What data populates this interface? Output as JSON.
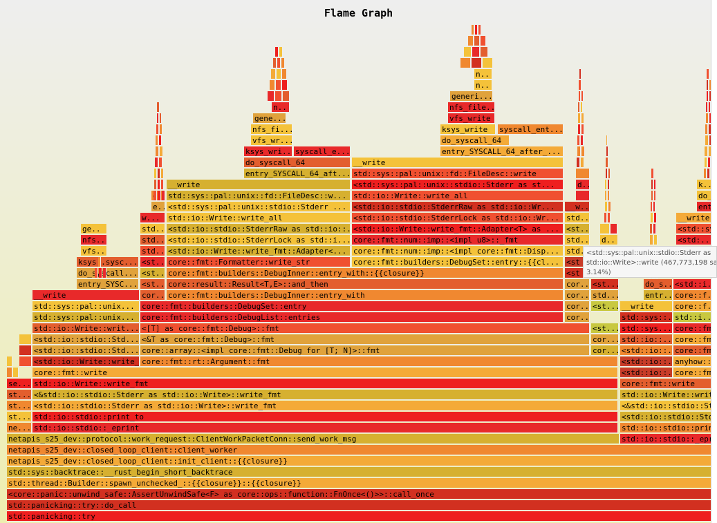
{
  "title": "Flame Graph",
  "tooltip": {
    "line1": "<std::sys::pal::unix::stdio::Stderr as",
    "line2": "std::io::Write>::write (467,773,198 sa",
    "line3": "3.14%)"
  },
  "colors": {
    "r": "#e8292a",
    "o": "#f08830",
    "y": "#f4c23a",
    "d": "#c83c28",
    "l": "#e0a23c",
    "k": "#d6b030",
    "g": "#c8c840",
    "p": "#f05030",
    "m": "#e35e2e",
    "c": "#d23020",
    "s": "#ee1f1f",
    "e": "#f4aa38"
  },
  "chart_data": {
    "type": "flame",
    "title": "Flame Graph",
    "tooltip_text": "<std::sys::pal::unix::stdio::Stderr as std::io::Write>::write (467,773,198 sa 3.14%)",
    "frames": [
      {
        "r": 0,
        "x": 10,
        "w": 1020,
        "c": "s",
        "t": "std::panicking::try"
      },
      {
        "r": 1,
        "x": 10,
        "w": 1020,
        "c": "c",
        "t": "std::panicking::try::do_call"
      },
      {
        "r": 2,
        "x": 10,
        "w": 1020,
        "c": "c",
        "t": "<core::panic::unwind_safe::AssertUnwindSafe<F> as core::ops::function::FnOnce<()>>::call_once"
      },
      {
        "r": 3,
        "x": 10,
        "w": 1020,
        "c": "e",
        "t": "std::thread::Builder::spawn_unchecked_::{{closure}}::{{closure}}"
      },
      {
        "r": 4,
        "x": 10,
        "w": 1020,
        "c": "k",
        "t": "std::sys::backtrace::__rust_begin_short_backtrace"
      },
      {
        "r": 5,
        "x": 10,
        "w": 1020,
        "c": "e",
        "t": "netapis_s25_dev::closed_loop_client::init_client::{{closure}}"
      },
      {
        "r": 6,
        "x": 10,
        "w": 1020,
        "c": "o",
        "t": "netapis_s25_dev::closed_loop_client::client_worker"
      },
      {
        "r": 7,
        "x": 10,
        "w": 886,
        "c": "k",
        "t": "netapis_s25_dev::protocol::work_request::ClientWorkPacketConn::send_work_msg"
      },
      {
        "r": 7,
        "x": 897,
        "w": 133,
        "c": "r",
        "t": "std::io::stdio::_eprint"
      },
      {
        "r": 8,
        "x": 10,
        "w": 36,
        "c": "o",
        "t": "ne..."
      },
      {
        "r": 8,
        "x": 47,
        "w": 847,
        "c": "r",
        "t": "std::io::stdio::_eprint"
      },
      {
        "r": 8,
        "x": 897,
        "w": 133,
        "c": "o",
        "t": "std::io::stdio::print_to"
      },
      {
        "r": 9,
        "x": 10,
        "w": 36,
        "c": "y",
        "t": "st..."
      },
      {
        "r": 9,
        "x": 47,
        "w": 847,
        "c": "s",
        "t": "std::io::stdio::print_to"
      },
      {
        "r": 9,
        "x": 897,
        "w": 133,
        "c": "k",
        "t": "<std::io::stdio::Stderr as std::io::Write>::write_fmt"
      },
      {
        "r": 10,
        "x": 10,
        "w": 36,
        "c": "o",
        "t": "st..."
      },
      {
        "r": 10,
        "x": 47,
        "w": 847,
        "c": "e",
        "t": "<std::io::stdio::Stderr as std::io::Write>::write_fmt"
      },
      {
        "r": 10,
        "x": 897,
        "w": 133,
        "c": "y",
        "t": "<&std::io::stdio::Stderr as std::io::Write>::write_fmt"
      },
      {
        "r": 11,
        "x": 10,
        "w": 36,
        "c": "m",
        "t": "st..."
      },
      {
        "r": 11,
        "x": 47,
        "w": 847,
        "c": "k",
        "t": "<&std::io::stdio::Stderr as std::io::Write>::write_fmt"
      },
      {
        "r": 11,
        "x": 897,
        "w": 133,
        "c": "k",
        "t": "std::io::Write::write_fmt"
      },
      {
        "r": 12,
        "x": 10,
        "w": 36,
        "c": "s",
        "t": "se..."
      },
      {
        "r": 12,
        "x": 47,
        "w": 847,
        "c": "s",
        "t": "std::io::Write::write_fmt"
      },
      {
        "r": 12,
        "x": 897,
        "w": 133,
        "c": "m",
        "t": "core::fmt::write"
      },
      {
        "r": 13,
        "x": 10,
        "w": 8,
        "c": "o",
        "t": ""
      },
      {
        "r": 13,
        "x": 19,
        "w": 8,
        "c": "y",
        "t": ""
      },
      {
        "r": 13,
        "x": 47,
        "w": 847,
        "c": "e",
        "t": "core::fmt::write"
      },
      {
        "r": 13,
        "x": 897,
        "w": 76,
        "c": "d",
        "t": "<std::io::..."
      },
      {
        "r": 13,
        "x": 974,
        "w": 56,
        "c": "e",
        "t": "core::fmt::write"
      },
      {
        "r": 14,
        "x": 10,
        "w": 8,
        "c": "y",
        "t": ""
      },
      {
        "r": 14,
        "x": 28,
        "w": 18,
        "c": "p",
        "t": ""
      },
      {
        "r": 14,
        "x": 47,
        "w": 155,
        "c": "c",
        "t": "<std::io::Write::write_fmt"
      },
      {
        "r": 14,
        "x": 203,
        "w": 691,
        "c": "o",
        "t": "core::fmt::rt::Argument::fmt"
      },
      {
        "r": 14,
        "x": 897,
        "w": 76,
        "c": "d",
        "t": "<std::io::..."
      },
      {
        "r": 14,
        "x": 974,
        "w": 56,
        "c": "e",
        "t": "anyhow::fmt"
      },
      {
        "r": 15,
        "x": 28,
        "w": 18,
        "c": "c",
        "t": ""
      },
      {
        "r": 15,
        "x": 47,
        "w": 155,
        "c": "l",
        "t": "<std::io::stdio::Std..."
      },
      {
        "r": 15,
        "x": 203,
        "w": 650,
        "c": "l",
        "t": "core::array::<impl core::fmt::Debug for [T; N]>::fmt"
      },
      {
        "r": 15,
        "x": 855,
        "w": 40,
        "c": "k",
        "t": "cor..."
      },
      {
        "r": 15,
        "x": 897,
        "w": 76,
        "c": "o",
        "t": "<std::io::..."
      },
      {
        "r": 15,
        "x": 974,
        "w": 56,
        "c": "m",
        "t": "core::fmt..."
      },
      {
        "r": 16,
        "x": 28,
        "w": 18,
        "c": "y",
        "t": ""
      },
      {
        "r": 16,
        "x": 47,
        "w": 155,
        "c": "l",
        "t": "<std::io::stdio::Std..."
      },
      {
        "r": 16,
        "x": 203,
        "w": 650,
        "c": "l",
        "t": "<&T as core::fmt::Debug>::fmt"
      },
      {
        "r": 16,
        "x": 855,
        "w": 40,
        "c": "l",
        "t": "cor..."
      },
      {
        "r": 16,
        "x": 897,
        "w": 76,
        "c": "m",
        "t": "std::io::..."
      },
      {
        "r": 16,
        "x": 974,
        "w": 56,
        "c": "e",
        "t": "core::fmt..."
      },
      {
        "r": 17,
        "x": 47,
        "w": 155,
        "c": "m",
        "t": "std::io::Write::writ..."
      },
      {
        "r": 17,
        "x": 203,
        "w": 650,
        "c": "p",
        "t": "<[T] as core::fmt::Debug>::fmt"
      },
      {
        "r": 17,
        "x": 855,
        "w": 40,
        "c": "g",
        "t": "<st..."
      },
      {
        "r": 17,
        "x": 897,
        "w": 76,
        "c": "s",
        "t": "std::sys..."
      },
      {
        "r": 17,
        "x": 974,
        "w": 56,
        "c": "r",
        "t": "core::fmt..."
      },
      {
        "r": 18,
        "x": 47,
        "w": 155,
        "c": "k",
        "t": "std::sys::pal::unix..."
      },
      {
        "r": 18,
        "x": 203,
        "w": 612,
        "c": "r",
        "t": "core::fmt::builders::DebugList::entries"
      },
      {
        "r": 18,
        "x": 817,
        "w": 36,
        "c": "l",
        "t": "cor..."
      },
      {
        "r": 18,
        "x": 897,
        "w": 76,
        "c": "c",
        "t": "std::sys::..."
      },
      {
        "r": 18,
        "x": 974,
        "w": 56,
        "c": "g",
        "t": "std::i..."
      },
      {
        "r": 19,
        "x": 47,
        "w": 155,
        "c": "y",
        "t": "std::sys::pal::unix..."
      },
      {
        "r": 19,
        "x": 203,
        "w": 612,
        "c": "r",
        "t": "core::fmt::builders::DebugSet::entry"
      },
      {
        "r": 19,
        "x": 817,
        "w": 36,
        "c": "l",
        "t": "cor..."
      },
      {
        "r": 19,
        "x": 855,
        "w": 40,
        "c": "g",
        "t": "<st..."
      },
      {
        "r": 19,
        "x": 897,
        "w": 76,
        "c": "y",
        "t": "__write"
      },
      {
        "r": 19,
        "x": 974,
        "w": 56,
        "c": "e",
        "t": "core::f..."
      },
      {
        "r": 20,
        "x": 47,
        "w": 155,
        "c": "r",
        "t": "__write"
      },
      {
        "r": 20,
        "x": 203,
        "w": 36,
        "c": "m",
        "t": "cor..."
      },
      {
        "r": 20,
        "x": 241,
        "w": 574,
        "c": "o",
        "t": "core::fmt::builders::DebugInner::entry_with"
      },
      {
        "r": 20,
        "x": 817,
        "w": 36,
        "c": "l",
        "t": "cor..."
      },
      {
        "r": 20,
        "x": 855,
        "w": 40,
        "c": "l",
        "t": "std..."
      },
      {
        "r": 20,
        "x": 931,
        "w": 42,
        "c": "k",
        "t": "entr..."
      },
      {
        "r": 20,
        "x": 974,
        "w": 56,
        "c": "o",
        "t": "core::f..."
      },
      {
        "r": 21,
        "x": 111,
        "w": 90,
        "c": "l",
        "t": "entry_SYSC..."
      },
      {
        "r": 21,
        "x": 203,
        "w": 36,
        "c": "m",
        "t": "<st..."
      },
      {
        "r": 21,
        "x": 241,
        "w": 574,
        "c": "m",
        "t": "core::result::Result<T,E>::and_then"
      },
      {
        "r": 21,
        "x": 817,
        "w": 36,
        "c": "l",
        "t": "cor..."
      },
      {
        "r": 21,
        "x": 855,
        "w": 40,
        "c": "c",
        "t": "<st..."
      },
      {
        "r": 21,
        "x": 931,
        "w": 42,
        "c": "m",
        "t": "do_s..."
      },
      {
        "r": 21,
        "x": 974,
        "w": 56,
        "c": "r",
        "t": "<std::i..."
      },
      {
        "r": 22,
        "x": 111,
        "w": 90,
        "c": "l",
        "t": "do_syscall..."
      },
      {
        "r": 22,
        "x": 203,
        "w": 36,
        "c": "k",
        "t": "<st..."
      },
      {
        "r": 22,
        "x": 241,
        "w": 574,
        "c": "o",
        "t": "core::fmt::builders::DebugInner::entry_with::{{closure}}"
      },
      {
        "r": 22,
        "x": 817,
        "w": 36,
        "c": "c",
        "t": "<st"
      },
      {
        "r": 23,
        "x": 111,
        "w": 90,
        "c": "m",
        "t": "ksys..sysc..."
      },
      {
        "r": 23,
        "x": 203,
        "w": 36,
        "c": "r",
        "t": "<st..."
      },
      {
        "r": 23,
        "x": 241,
        "w": 266,
        "c": "p",
        "t": "core::fmt::Formatter::write_str"
      },
      {
        "r": 23,
        "x": 509,
        "w": 306,
        "c": "y",
        "t": "core::fmt::builders::DebugSet::entry::{{cl..."
      },
      {
        "r": 23,
        "x": 817,
        "w": 36,
        "c": "d",
        "t": "<st"
      },
      {
        "r": 24,
        "x": 117,
        "w": 38,
        "c": "y",
        "t": "vfs..."
      },
      {
        "r": 24,
        "x": 203,
        "w": 36,
        "c": "p",
        "t": "std..."
      },
      {
        "r": 24,
        "x": 241,
        "w": 266,
        "c": "k",
        "t": "<std::io::Write::write_fmt::Adapter<..."
      },
      {
        "r": 24,
        "x": 509,
        "w": 306,
        "c": "y",
        "t": "core::fmt::num::imp::<impl core::fmt::Disp..."
      },
      {
        "r": 24,
        "x": 817,
        "w": 36,
        "c": "y",
        "t": "std..."
      },
      {
        "r": 25,
        "x": 117,
        "w": 38,
        "c": "r",
        "t": "nfs..."
      },
      {
        "r": 25,
        "x": 203,
        "w": 36,
        "c": "m",
        "t": "std..."
      },
      {
        "r": 25,
        "x": 241,
        "w": 266,
        "c": "y",
        "t": "<std::io::stdio::StderrLock as std::i..."
      },
      {
        "r": 25,
        "x": 509,
        "w": 306,
        "c": "r",
        "t": "core::fmt::num::imp::<impl u8>::_fmt"
      },
      {
        "r": 25,
        "x": 817,
        "w": 36,
        "c": "y",
        "t": "std..."
      },
      {
        "r": 25,
        "x": 868,
        "w": 26,
        "c": "y",
        "t": "d.."
      },
      {
        "r": 25,
        "x": 978,
        "w": 52,
        "c": "r",
        "t": "<std:..."
      },
      {
        "r": 26,
        "x": 117,
        "w": 38,
        "c": "y",
        "t": "ge.."
      },
      {
        "r": 26,
        "x": 203,
        "w": 36,
        "c": "y",
        "t": "std..."
      },
      {
        "r": 26,
        "x": 241,
        "w": 266,
        "c": "k",
        "t": "<std::io::stdio::StderrRaw as std::io::..."
      },
      {
        "r": 26,
        "x": 509,
        "w": 306,
        "c": "s",
        "t": "<std::io::Write::write_fmt::Adapter<T> as ..."
      },
      {
        "r": 26,
        "x": 817,
        "w": 36,
        "c": "k",
        "t": "<st..."
      },
      {
        "r": 26,
        "x": 868,
        "w": 14,
        "c": "y",
        "t": ""
      },
      {
        "r": 26,
        "x": 883,
        "w": 10,
        "c": "r",
        "t": ""
      },
      {
        "r": 26,
        "x": 978,
        "w": 52,
        "c": "p",
        "t": "<std::sy..."
      },
      {
        "r": 27,
        "x": 203,
        "w": 36,
        "c": "r",
        "t": "w..."
      },
      {
        "r": 27,
        "x": 241,
        "w": 266,
        "c": "y",
        "t": "std::io::Write::write_all"
      },
      {
        "r": 27,
        "x": 509,
        "w": 306,
        "c": "p",
        "t": "<std::io::stdio::StderrLock as std::io::Wr..."
      },
      {
        "r": 27,
        "x": 817,
        "w": 36,
        "c": "y",
        "t": "std..."
      },
      {
        "r": 27,
        "x": 978,
        "w": 52,
        "c": "e",
        "t": "__write"
      },
      {
        "r": 28,
        "x": 219,
        "w": 20,
        "c": "l",
        "t": "e.."
      },
      {
        "r": 28,
        "x": 241,
        "w": 266,
        "c": "y",
        "t": "<std::sys::pal::unix::stdio::Stderr ..."
      },
      {
        "r": 28,
        "x": 509,
        "w": 306,
        "c": "c",
        "t": "<std::io::stdio::StderrRaw as std::io::Wr..."
      },
      {
        "r": 28,
        "x": 817,
        "w": 36,
        "c": "c",
        "t": "__w..."
      },
      {
        "r": 28,
        "x": 1008,
        "w": 22,
        "c": "r",
        "t": "ent..."
      },
      {
        "r": 29,
        "x": 219,
        "w": 20,
        "c": "o",
        "t": "d.."
      },
      {
        "r": 29,
        "x": 241,
        "w": 266,
        "c": "k",
        "t": "std::sys::pal::unix::fd::FileDesc::w..."
      },
      {
        "r": 29,
        "x": 509,
        "w": 306,
        "c": "p",
        "t": "std::io::Write::write_all"
      },
      {
        "r": 29,
        "x": 833,
        "w": 20,
        "c": "r",
        "t": ""
      },
      {
        "r": 29,
        "x": 1008,
        "w": 22,
        "c": "y",
        "t": "do_..."
      },
      {
        "r": 30,
        "x": 241,
        "w": 266,
        "c": "k",
        "t": "__write"
      },
      {
        "r": 30,
        "x": 509,
        "w": 306,
        "c": "s",
        "t": "<std::sys::pal::unix::stdio::Stderr as st..."
      },
      {
        "r": 30,
        "x": 833,
        "w": 20,
        "c": "r",
        "t": "d..."
      },
      {
        "r": 30,
        "x": 1008,
        "w": 22,
        "c": "y",
        "t": "k..."
      },
      {
        "r": 31,
        "x": 353,
        "w": 154,
        "c": "k",
        "t": "entry_SYSCALL_64_aft..."
      },
      {
        "r": 31,
        "x": 509,
        "w": 306,
        "c": "p",
        "t": "std::sys::pal::unix::fd::FileDesc::write"
      },
      {
        "r": 31,
        "x": 833,
        "w": 20,
        "c": "o",
        "t": ""
      },
      {
        "r": 32,
        "x": 353,
        "w": 154,
        "c": "m",
        "t": "do_syscall_64"
      },
      {
        "r": 32,
        "x": 509,
        "w": 306,
        "c": "y",
        "t": "__write"
      },
      {
        "r": 33,
        "x": 353,
        "w": 70,
        "c": "r",
        "t": "ksys_wri..."
      },
      {
        "r": 33,
        "x": 425,
        "w": 82,
        "c": "r",
        "t": "syscall_e..."
      },
      {
        "r": 33,
        "x": 637,
        "w": 178,
        "c": "e",
        "t": "entry_SYSCALL_64_after_..."
      },
      {
        "r": 34,
        "x": 363,
        "w": 60,
        "c": "y",
        "t": "vfs_wr..."
      },
      {
        "r": 34,
        "x": 637,
        "w": 100,
        "c": "e",
        "t": "do_syscall_64"
      },
      {
        "r": 35,
        "x": 363,
        "w": 60,
        "c": "y",
        "t": "nfs_fi..."
      },
      {
        "r": 35,
        "x": 637,
        "w": 80,
        "c": "y",
        "t": "ksys_write"
      },
      {
        "r": 35,
        "x": 720,
        "w": 95,
        "c": "o",
        "t": "syscall_ent..."
      },
      {
        "r": 36,
        "x": 366,
        "w": 48,
        "c": "l",
        "t": "gene..."
      },
      {
        "r": 36,
        "x": 648,
        "w": 68,
        "c": "r",
        "t": "vfs_write"
      },
      {
        "r": 37,
        "x": 393,
        "w": 26,
        "c": "r",
        "t": "n.."
      },
      {
        "r": 37,
        "x": 648,
        "w": 68,
        "c": "r",
        "t": "nfs_file..."
      },
      {
        "r": 38,
        "x": 651,
        "w": 62,
        "c": "l",
        "t": "generi..."
      },
      {
        "r": 39,
        "x": 686,
        "w": 26,
        "c": "y",
        "t": "n.."
      },
      {
        "r": 40,
        "x": 686,
        "w": 26,
        "c": "y",
        "t": "n.."
      }
    ]
  }
}
